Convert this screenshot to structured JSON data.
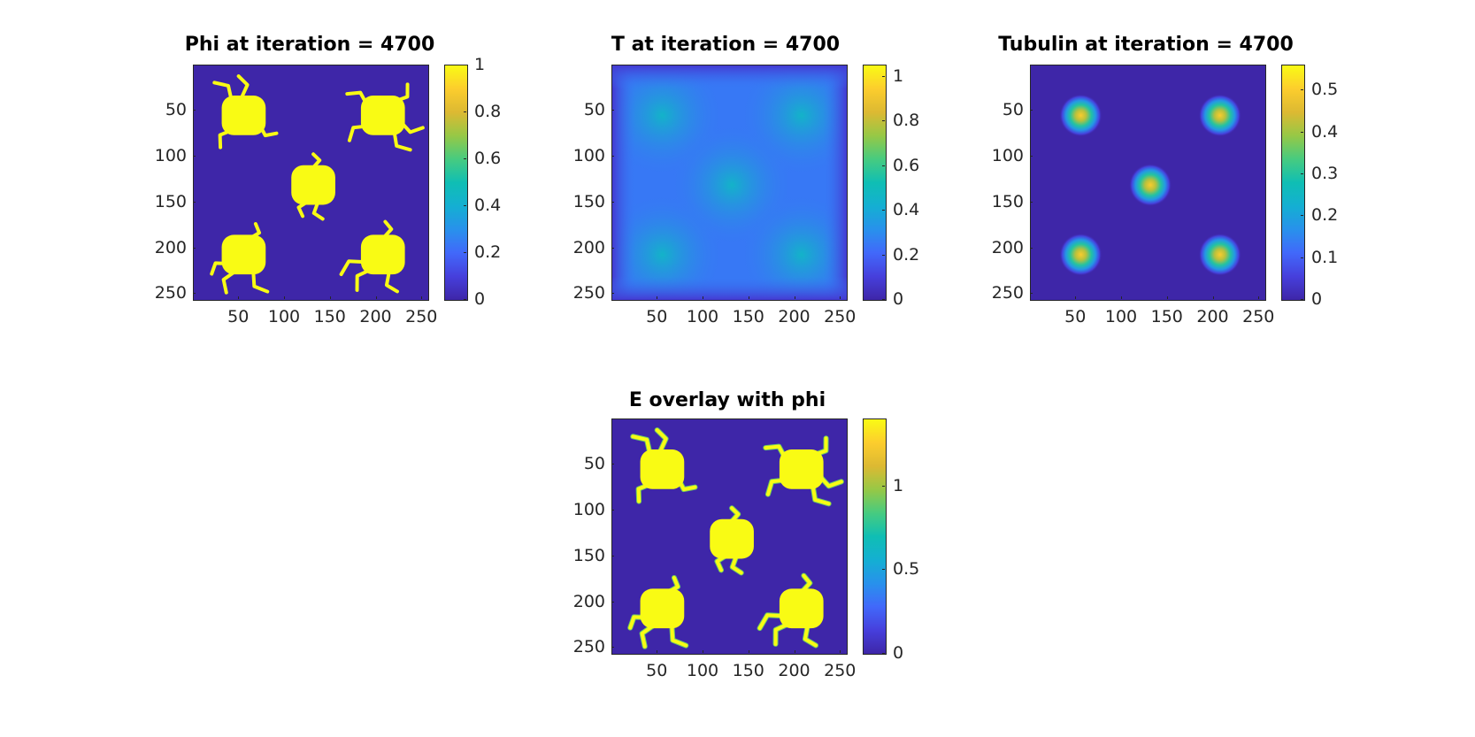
{
  "chart_data": [
    {
      "type": "heatmap",
      "title": "Phi at iteration = 4700",
      "xlim": [
        0.5,
        256.5
      ],
      "ylim": [
        0.5,
        256.5
      ],
      "y_reversed": true,
      "x_ticks": [
        "50",
        "100",
        "150",
        "200",
        "250"
      ],
      "y_ticks": [
        "50",
        "100",
        "150",
        "200",
        "250"
      ],
      "x_tick_values": [
        50,
        100,
        150,
        200,
        250
      ],
      "y_tick_values": [
        50,
        100,
        150,
        200,
        250
      ],
      "colorbar": {
        "min": 0,
        "max": 1,
        "ticks": [
          "0",
          "0.2",
          "0.4",
          "0.6",
          "0.8",
          "1"
        ],
        "tick_values": [
          0,
          0.2,
          0.4,
          0.6,
          0.8,
          1
        ]
      },
      "cells": [
        {
          "x": 55,
          "y": 55,
          "r": 24,
          "value": 1
        },
        {
          "x": 207,
          "y": 55,
          "r": 24,
          "value": 1
        },
        {
          "x": 131,
          "y": 131,
          "r": 24,
          "value": 1
        },
        {
          "x": 55,
          "y": 207,
          "r": 24,
          "value": 1
        },
        {
          "x": 207,
          "y": 207,
          "r": 24,
          "value": 1
        }
      ],
      "background_value": 0
    },
    {
      "type": "heatmap",
      "title": "T at iteration = 4700",
      "xlim": [
        0.5,
        256.5
      ],
      "ylim": [
        0.5,
        256.5
      ],
      "y_reversed": true,
      "x_ticks": [
        "50",
        "100",
        "150",
        "200",
        "250"
      ],
      "y_ticks": [
        "50",
        "100",
        "150",
        "200",
        "250"
      ],
      "x_tick_values": [
        50,
        100,
        150,
        200,
        250
      ],
      "y_tick_values": [
        50,
        100,
        150,
        200,
        250
      ],
      "colorbar": {
        "min": 0,
        "max": 1.05,
        "ticks": [
          "0",
          "0.2",
          "0.4",
          "0.6",
          "0.8",
          "1"
        ],
        "tick_values": [
          0,
          0.2,
          0.4,
          0.6,
          0.8,
          1
        ]
      },
      "background_value": 0.25,
      "center_value": 0.45
    },
    {
      "type": "heatmap",
      "title": "Tubulin at iteration = 4700",
      "xlim": [
        0.5,
        256.5
      ],
      "ylim": [
        0.5,
        256.5
      ],
      "y_reversed": true,
      "x_ticks": [
        "50",
        "100",
        "150",
        "200",
        "250"
      ],
      "y_ticks": [
        "50",
        "100",
        "150",
        "200",
        "250"
      ],
      "x_tick_values": [
        50,
        100,
        150,
        200,
        250
      ],
      "y_tick_values": [
        50,
        100,
        150,
        200,
        250
      ],
      "colorbar": {
        "min": 0,
        "max": 0.56,
        "ticks": [
          "0",
          "0.1",
          "0.2",
          "0.3",
          "0.4",
          "0.5"
        ],
        "tick_values": [
          0,
          0.1,
          0.2,
          0.3,
          0.4,
          0.5
        ]
      },
      "peaks": [
        {
          "x": 55,
          "y": 55,
          "value": 0.5
        },
        {
          "x": 207,
          "y": 55,
          "value": 0.5
        },
        {
          "x": 131,
          "y": 131,
          "value": 0.5
        },
        {
          "x": 55,
          "y": 207,
          "value": 0.5
        },
        {
          "x": 207,
          "y": 207,
          "value": 0.5
        }
      ],
      "background_value": 0
    },
    {
      "type": "heatmap",
      "title": "E overlay with phi",
      "xlim": [
        0.5,
        256.5
      ],
      "ylim": [
        0.5,
        256.5
      ],
      "y_reversed": true,
      "x_ticks": [
        "50",
        "100",
        "150",
        "200",
        "250"
      ],
      "y_ticks": [
        "50",
        "100",
        "150",
        "200",
        "250"
      ],
      "x_tick_values": [
        50,
        100,
        150,
        200,
        250
      ],
      "y_tick_values": [
        50,
        100,
        150,
        200,
        250
      ],
      "colorbar": {
        "min": 0,
        "max": 1.4,
        "ticks": [
          "0",
          "0.5",
          "1"
        ],
        "tick_values": [
          0,
          0.5,
          1
        ]
      },
      "cells": [
        {
          "x": 55,
          "y": 55,
          "r": 24,
          "value": 1.4
        },
        {
          "x": 207,
          "y": 55,
          "r": 24,
          "value": 1.4
        },
        {
          "x": 131,
          "y": 131,
          "r": 24,
          "value": 1.4
        },
        {
          "x": 55,
          "y": 207,
          "r": 24,
          "value": 1.4
        },
        {
          "x": 207,
          "y": 207,
          "r": 24,
          "value": 1.4
        }
      ],
      "background_value": 0
    }
  ]
}
